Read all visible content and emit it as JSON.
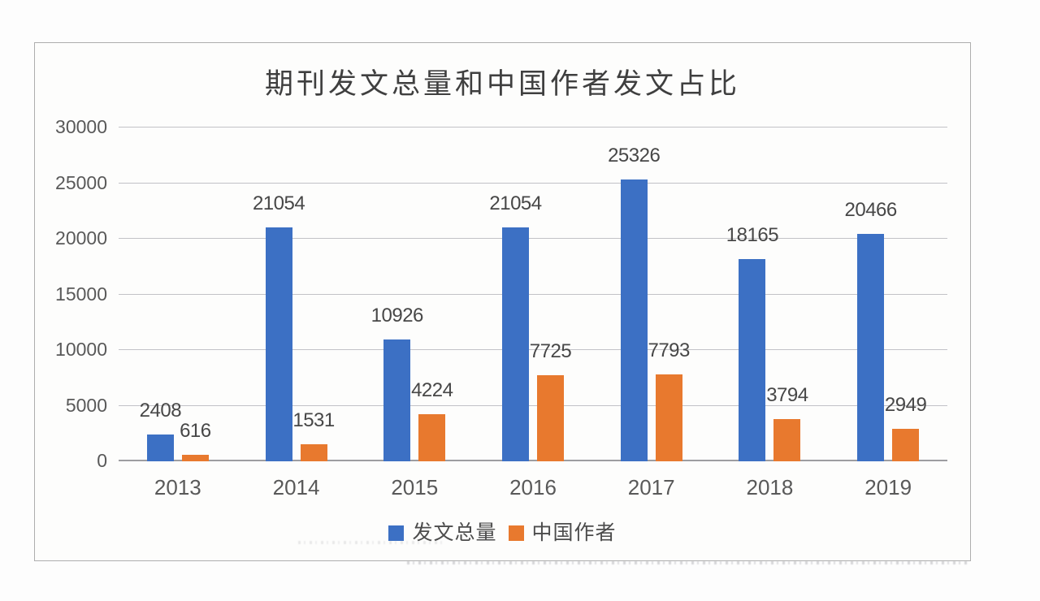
{
  "chart_data": {
    "type": "bar",
    "title": "期刊发文总量和中国作者发文占比",
    "categories": [
      "2013",
      "2014",
      "2015",
      "2016",
      "2017",
      "2018",
      "2019"
    ],
    "series": [
      {
        "name": "发文总量",
        "color": "#3C70C4",
        "values": [
          2408,
          21054,
          10926,
          21054,
          25326,
          18165,
          20466
        ]
      },
      {
        "name": "中国作者",
        "color": "#E8792E",
        "values": [
          616,
          1531,
          4224,
          7725,
          7793,
          3794,
          2949
        ]
      }
    ],
    "xlabel": "",
    "ylabel": "",
    "ylim": [
      0,
      30000
    ],
    "yticks": [
      0,
      5000,
      10000,
      15000,
      20000,
      25000,
      30000
    ],
    "grid": true,
    "data_labels": true,
    "legend_position": "bottom-center",
    "colors": {
      "grid": "#c2c2c7",
      "axis_line": "#9d9da1",
      "text": "#595959",
      "title_text": "#3f3f3f"
    }
  }
}
